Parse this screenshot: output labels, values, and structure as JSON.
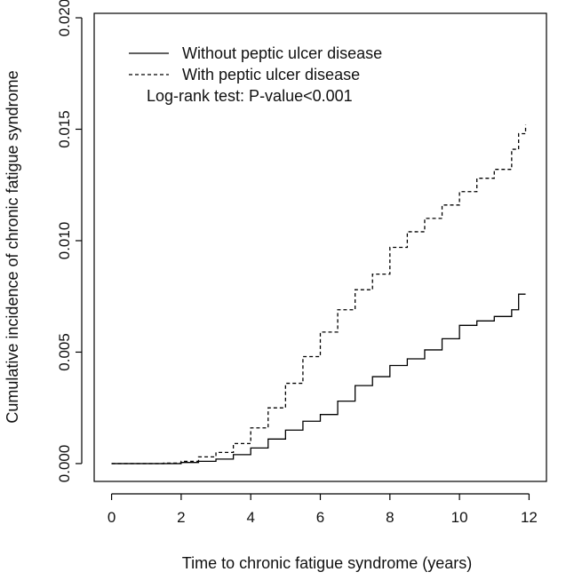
{
  "chart_data": {
    "type": "line",
    "title": "",
    "xlabel": "Time to chronic fatigue syndrome (years)",
    "ylabel": "Cumulative incidence of chronic fatigue syndrome",
    "xlim": [
      -0.5,
      12.5
    ],
    "ylim": [
      -0.0008,
      0.0202
    ],
    "x_ticks": [
      0,
      2,
      4,
      6,
      8,
      10,
      12
    ],
    "x_tick_labels": [
      "0",
      "2",
      "4",
      "6",
      "8",
      "10",
      "12"
    ],
    "y_ticks": [
      0,
      0.005,
      0.01,
      0.015,
      0.02
    ],
    "y_tick_labels": [
      "0.000",
      "0.005",
      "0.010",
      "0.015",
      "0.020"
    ],
    "grid": false,
    "legend_position": "top-left",
    "legend": {
      "entries": [
        "Without peptic ulcer disease",
        "With peptic ulcer disease"
      ],
      "annotation": "Log-rank test: P-value<0.001"
    },
    "series": [
      {
        "name": "Without peptic ulcer disease",
        "line_style": "solid",
        "color": "#000000",
        "x": [
          0,
          1.5,
          2.0,
          2.5,
          3.0,
          3.5,
          4.0,
          4.5,
          5.0,
          5.5,
          6.0,
          6.5,
          7.0,
          7.5,
          8.0,
          8.5,
          9.0,
          9.5,
          10.0,
          10.5,
          11.0,
          11.5,
          11.7,
          11.9
        ],
        "y": [
          0,
          0,
          5e-05,
          0.0001,
          0.0002,
          0.0004,
          0.0007,
          0.0011,
          0.0015,
          0.0019,
          0.0022,
          0.0028,
          0.0035,
          0.0039,
          0.0044,
          0.0047,
          0.0051,
          0.0056,
          0.0062,
          0.0064,
          0.0066,
          0.0069,
          0.0076,
          0.0076
        ]
      },
      {
        "name": "With peptic ulcer disease",
        "line_style": "dashed",
        "color": "#000000",
        "x": [
          0,
          1.5,
          2.0,
          2.5,
          3.0,
          3.5,
          4.0,
          4.5,
          5.0,
          5.5,
          6.0,
          6.5,
          7.0,
          7.5,
          8.0,
          8.5,
          9.0,
          9.5,
          10.0,
          10.5,
          11.0,
          11.5,
          11.7,
          11.9
        ],
        "y": [
          0,
          2e-05,
          0.0001,
          0.0003,
          0.0005,
          0.0009,
          0.0016,
          0.0025,
          0.0036,
          0.0048,
          0.0059,
          0.0069,
          0.0078,
          0.0085,
          0.0097,
          0.0104,
          0.011,
          0.0116,
          0.0122,
          0.0128,
          0.0132,
          0.0141,
          0.0148,
          0.0152
        ]
      }
    ]
  }
}
